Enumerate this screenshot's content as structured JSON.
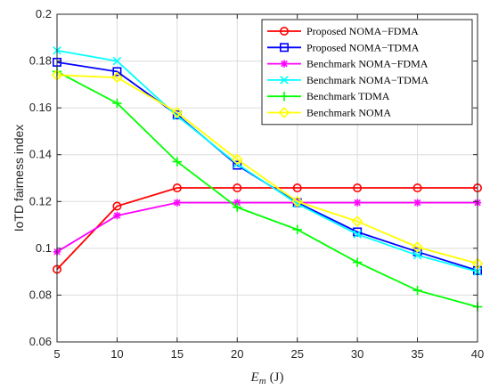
{
  "chart_data": {
    "type": "line",
    "title": "",
    "xlabel": {
      "symbol": "E",
      "subscript": "m",
      "unit": "(J)"
    },
    "ylabel": "IoTD fairness index",
    "x": [
      5,
      10,
      15,
      20,
      25,
      30,
      35,
      40
    ],
    "xlim": [
      5,
      40
    ],
    "ylim": [
      0.06,
      0.2
    ],
    "xticks": [
      "5",
      "10",
      "15",
      "20",
      "25",
      "30",
      "35",
      "40"
    ],
    "yticks": [
      "0.06",
      "0.08",
      "0.1",
      "0.12",
      "0.14",
      "0.16",
      "0.18",
      "0.2"
    ],
    "grid": true,
    "legend_position": "top-right",
    "series": [
      {
        "name": "Proposed NOMA−FDMA",
        "color": "#ff0000",
        "marker": "circle",
        "values": [
          0.091,
          0.118,
          0.1258,
          0.1258,
          0.1258,
          0.1258,
          0.1258,
          0.1258
        ]
      },
      {
        "name": "Proposed NOMA−TDMA",
        "color": "#0000ff",
        "marker": "square",
        "values": [
          0.1795,
          0.1755,
          0.157,
          0.1355,
          0.1195,
          0.107,
          0.0985,
          0.0905
        ]
      },
      {
        "name": "Benchmark NOMA−FDMA",
        "color": "#ff00ff",
        "marker": "asterisk",
        "values": [
          0.0985,
          0.114,
          0.1195,
          0.1195,
          0.1195,
          0.1195,
          0.1195,
          0.1195
        ]
      },
      {
        "name": "Benchmark NOMA−TDMA",
        "color": "#00ffff",
        "marker": "x",
        "values": [
          0.1845,
          0.18,
          0.1565,
          0.136,
          0.119,
          0.106,
          0.097,
          0.09
        ]
      },
      {
        "name": "Benchmark TDMA",
        "color": "#00ff00",
        "marker": "plus",
        "values": [
          0.1755,
          0.162,
          0.137,
          0.1175,
          0.108,
          0.094,
          0.082,
          0.075
        ]
      },
      {
        "name": "Benchmark NOMA",
        "color": "#ffff00",
        "marker": "diamond",
        "values": [
          0.174,
          0.173,
          0.158,
          0.138,
          0.12,
          0.1115,
          0.1005,
          0.0935
        ]
      }
    ]
  }
}
